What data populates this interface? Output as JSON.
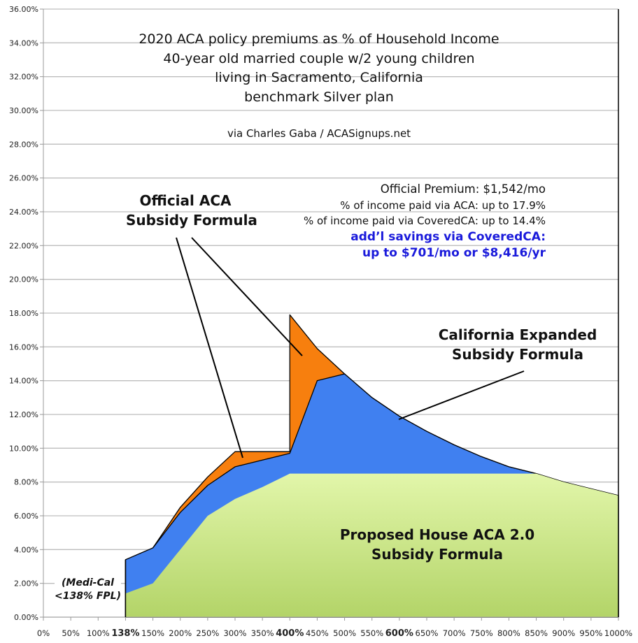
{
  "chart_data": {
    "type": "area",
    "stacked": false,
    "title": [
      "2020 ACA policy premiums as % of Household Income",
      "40-year old married couple w/2 young children",
      "living in Sacramento, California",
      "benchmark Silver plan"
    ],
    "subtitle": "via Charles Gaba / ACASignups.net",
    "categories": [
      "0%",
      "50%",
      "100%",
      "138%",
      "150%",
      "200%",
      "250%",
      "300%",
      "350%",
      "400%",
      "450%",
      "500%",
      "550%",
      "600%",
      "650%",
      "700%",
      "750%",
      "800%",
      "850%",
      "900%",
      "950%",
      "1000%"
    ],
    "bold_categories": [
      "138%",
      "400%",
      "600%"
    ],
    "y_ticks": [
      "0.00%",
      "2.00%",
      "4.00%",
      "6.00%",
      "8.00%",
      "10.00%",
      "12.00%",
      "14.00%",
      "16.00%",
      "18.00%",
      "20.00%",
      "22.00%",
      "24.00%",
      "26.00%",
      "28.00%",
      "30.00%",
      "32.00%",
      "34.00%",
      "36.00%"
    ],
    "ylim": [
      0,
      36
    ],
    "grid": true,
    "series": [
      {
        "name": "Official ACA Subsidy Formula",
        "color": "#f77f0e",
        "points": [
          [
            "138%",
            3.4
          ],
          [
            "150%",
            4.1
          ],
          [
            "200%",
            6.5
          ],
          [
            "250%",
            8.3
          ],
          [
            "300%",
            9.8
          ],
          [
            "350%",
            9.8
          ],
          [
            "400%",
            9.8
          ],
          [
            "400%",
            17.9
          ],
          [
            "450%",
            15.9
          ],
          [
            "500%",
            14.4
          ],
          [
            "550%",
            13.0
          ],
          [
            "600%",
            11.9
          ],
          [
            "650%",
            11.0
          ],
          [
            "700%",
            10.2
          ],
          [
            "750%",
            9.5
          ],
          [
            "800%",
            8.9
          ],
          [
            "850%",
            8.5
          ],
          [
            "900%",
            8.0
          ],
          [
            "950%",
            7.6
          ],
          [
            "1000%",
            7.2
          ]
        ]
      },
      {
        "name": "California Expanded Subsidy Formula",
        "color": "#4080f0",
        "points": [
          [
            "138%",
            3.4
          ],
          [
            "150%",
            4.1
          ],
          [
            "200%",
            6.2
          ],
          [
            "250%",
            7.8
          ],
          [
            "300%",
            8.9
          ],
          [
            "350%",
            9.3
          ],
          [
            "400%",
            9.7
          ],
          [
            "450%",
            14.0
          ],
          [
            "500%",
            14.4
          ],
          [
            "550%",
            13.0
          ],
          [
            "600%",
            11.9
          ],
          [
            "650%",
            11.0
          ],
          [
            "700%",
            10.2
          ],
          [
            "750%",
            9.5
          ],
          [
            "800%",
            8.9
          ],
          [
            "850%",
            8.5
          ],
          [
            "900%",
            8.0
          ],
          [
            "950%",
            7.6
          ],
          [
            "1000%",
            7.2
          ]
        ]
      },
      {
        "name": "Proposed House ACA 2.0 Subsidy Formula",
        "color": "#c6e08a",
        "points": [
          [
            "138%",
            1.4
          ],
          [
            "150%",
            2.0
          ],
          [
            "200%",
            4.0
          ],
          [
            "250%",
            6.0
          ],
          [
            "300%",
            7.0
          ],
          [
            "350%",
            7.7
          ],
          [
            "400%",
            8.5
          ],
          [
            "450%",
            8.5
          ],
          [
            "500%",
            8.5
          ],
          [
            "550%",
            8.5
          ],
          [
            "600%",
            8.5
          ],
          [
            "650%",
            8.5
          ],
          [
            "700%",
            8.5
          ],
          [
            "750%",
            8.5
          ],
          [
            "800%",
            8.5
          ],
          [
            "850%",
            8.5
          ],
          [
            "900%",
            8.0
          ],
          [
            "950%",
            7.6
          ],
          [
            "1000%",
            7.2
          ]
        ]
      }
    ],
    "annotations": {
      "official_premium": "Official Premium: $1,542/mo",
      "aca_pct": "% of income paid via ACA: up to 17.9%",
      "coveredca_pct": "% of income paid via CoveredCA: up to 14.4%",
      "savings_1": "add’l savings via CoveredCA:",
      "savings_2": "up to $701/mo or $8,416/yr",
      "official_label": [
        "Official ACA",
        "Subsidy Formula"
      ],
      "california_label": [
        "California Expanded",
        "Subsidy Formula"
      ],
      "house_label": [
        "Proposed House ACA 2.0",
        "Subsidy Formula"
      ],
      "medical": [
        "(Medi-Cal",
        "<138% FPL)"
      ]
    }
  }
}
